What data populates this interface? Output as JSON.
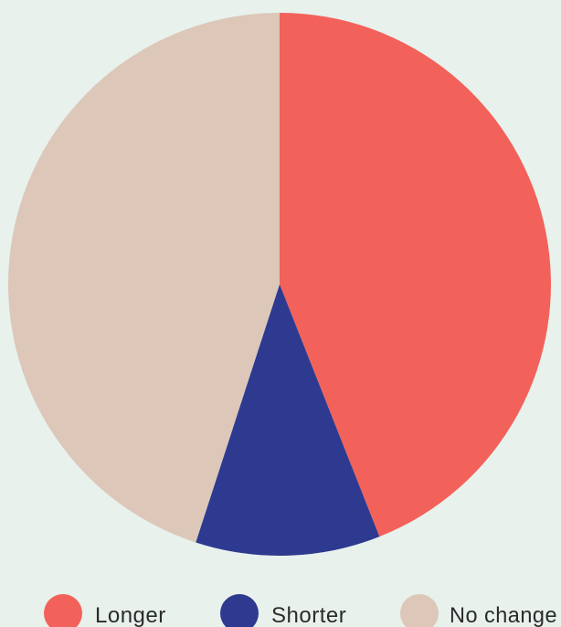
{
  "chart_data": {
    "type": "pie",
    "title": "",
    "categories": [
      "Longer",
      "Shorter",
      "No change"
    ],
    "values": [
      44,
      11,
      45
    ],
    "colors": [
      "#f2625a",
      "#2e3a8f",
      "#dcc7b9"
    ],
    "start_angle_deg": 0,
    "direction": "clockwise",
    "legend": {
      "placement": "bottom",
      "entries": [
        "Longer",
        "Shorter",
        "No change"
      ]
    }
  },
  "background_color": "#e8f1ec"
}
